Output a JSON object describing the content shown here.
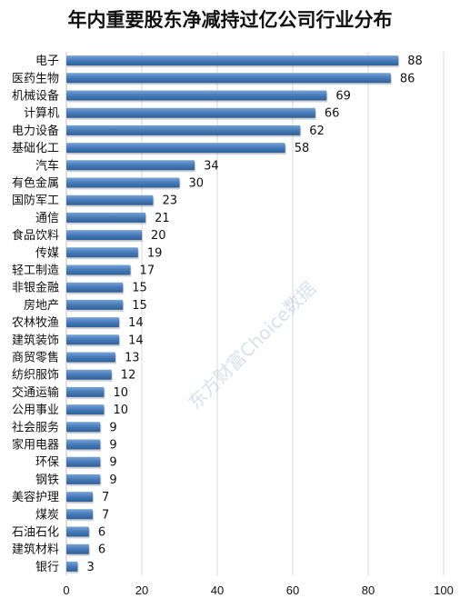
{
  "chart_data": {
    "type": "bar",
    "orientation": "horizontal",
    "title": "年内重要股东净减持过亿公司行业分布",
    "categories": [
      "电子",
      "医药生物",
      "机械设备",
      "计算机",
      "电力设备",
      "基础化工",
      "汽车",
      "有色金属",
      "国防军工",
      "通信",
      "食品饮料",
      "传媒",
      "轻工制造",
      "非银金融",
      "房地产",
      "农林牧渔",
      "建筑装饰",
      "商贸零售",
      "纺织服饰",
      "交通运输",
      "公用事业",
      "社会服务",
      "家用电器",
      "环保",
      "钢铁",
      "美容护理",
      "煤炭",
      "石油石化",
      "建筑材料",
      "银行"
    ],
    "values": [
      88,
      86,
      69,
      66,
      62,
      58,
      34,
      30,
      23,
      21,
      20,
      19,
      17,
      15,
      15,
      14,
      14,
      13,
      12,
      10,
      10,
      9,
      9,
      9,
      9,
      7,
      7,
      6,
      6,
      3
    ],
    "xlim": [
      0,
      100
    ],
    "xticks": [
      "0",
      "20",
      "40",
      "60",
      "80",
      "100"
    ],
    "grid": true,
    "bar_color": "#4a7ebb"
  },
  "watermark": "东方财富Choice数据"
}
